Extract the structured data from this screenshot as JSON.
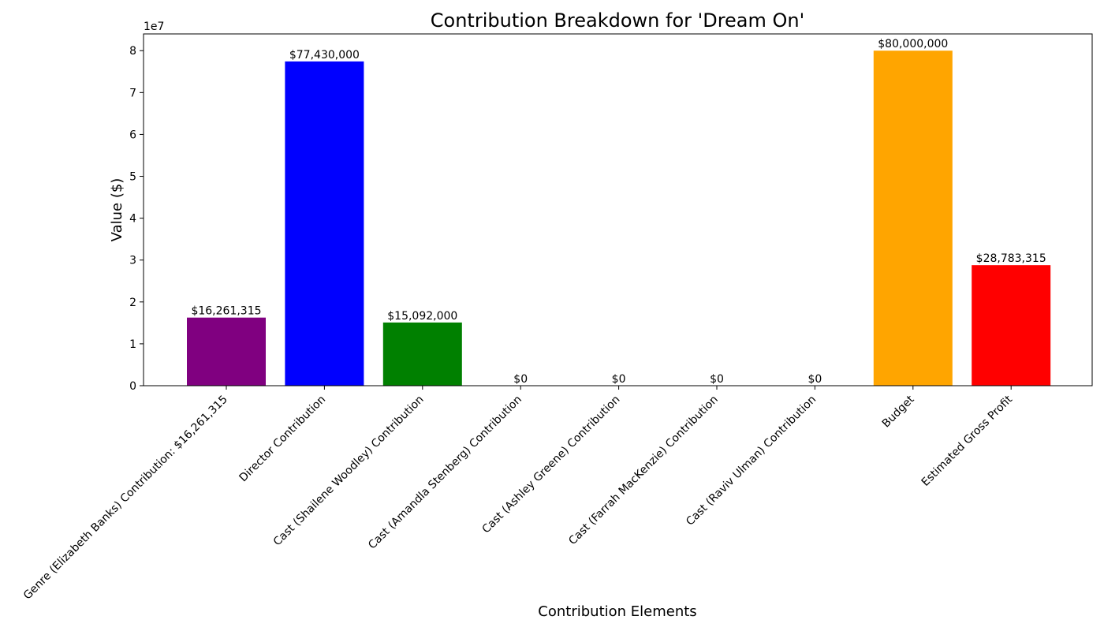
{
  "chart_data": {
    "type": "bar",
    "title": "Contribution Breakdown for 'Dream On'",
    "xlabel": "Contribution Elements",
    "ylabel": "Value ($)",
    "y_offset_label": "1e7",
    "ylim": [
      0,
      84000000
    ],
    "y_ticks": [
      0,
      10000000,
      20000000,
      30000000,
      40000000,
      50000000,
      60000000,
      70000000,
      80000000
    ],
    "y_tick_labels": [
      "0",
      "1",
      "2",
      "3",
      "4",
      "5",
      "6",
      "7",
      "8"
    ],
    "grid": false,
    "categories": [
      "Genre (Elizabeth Banks) Contribution: $16,261,315",
      "Director Contribution",
      "Cast (Shailene Woodley) Contribution",
      "Cast (Amandla Stenberg) Contribution",
      "Cast (Ashley Greene) Contribution",
      "Cast (Farrah MacKenzie) Contribution",
      "Cast (Raviv Ulman) Contribution",
      "Budget",
      "Estimated Gross Profit"
    ],
    "values": [
      16261315,
      77430000,
      15092000,
      0,
      0,
      0,
      0,
      80000000,
      28783315
    ],
    "value_labels": [
      "$16,261,315",
      "$77,430,000",
      "$15,092,000",
      "$0",
      "$0",
      "$0",
      "$0",
      "$80,000,000",
      "$28,783,315"
    ],
    "colors": [
      "#800080",
      "#0000ff",
      "#008000",
      "#ffa500",
      "#ffa500",
      "#ffa500",
      "#ffa500",
      "#ffa500",
      "#ff0000"
    ]
  }
}
